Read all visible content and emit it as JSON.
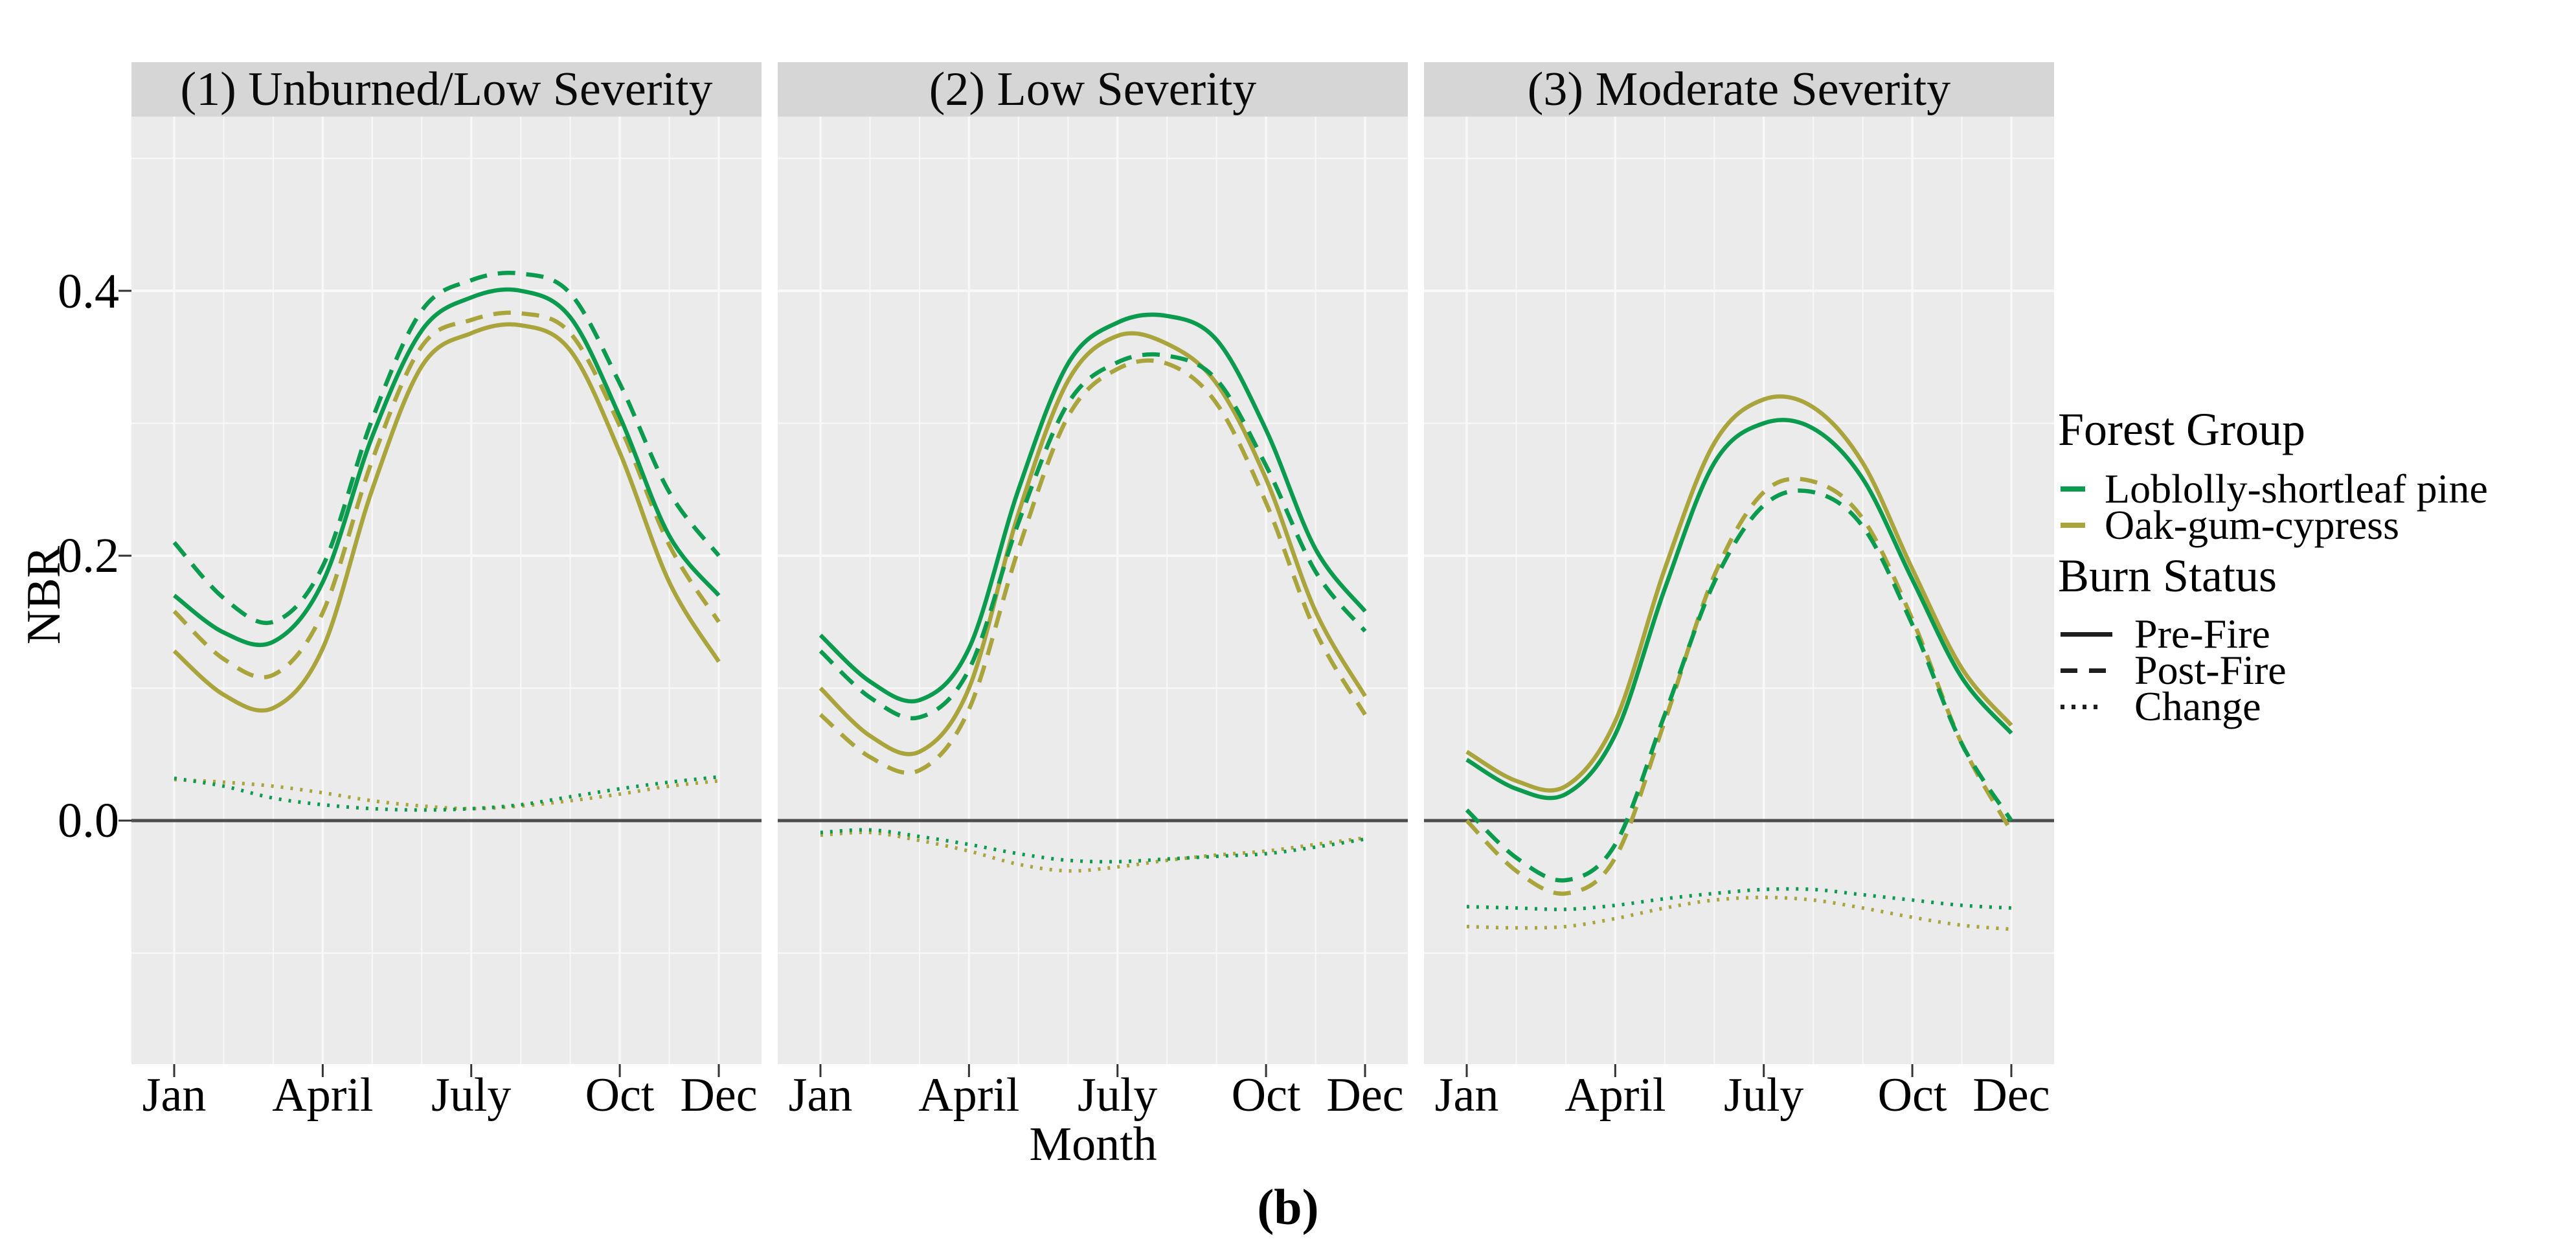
{
  "figure": {
    "caption": "(b)",
    "y_axis": {
      "label": "NBR",
      "tick_labels": [
        "0.4",
        "0.2",
        "0.0"
      ],
      "tick_values": [
        0.4,
        0.2,
        0.0
      ]
    },
    "x_axis": {
      "label": "Month",
      "tick_labels": [
        "Jan",
        "April",
        "July",
        "Oct",
        "Dec"
      ],
      "tick_months": [
        1,
        4,
        7,
        10,
        12
      ]
    },
    "legend": {
      "group_title": "Forest Group",
      "groups": [
        {
          "label": "Loblolly-shortleaf pine",
          "color": "#0b9b4f"
        },
        {
          "label": "Oak-gum-cypress",
          "color": "#a9a43b"
        }
      ],
      "status_title": "Burn Status",
      "statuses": [
        {
          "label": "Pre-Fire",
          "linetype": "solid"
        },
        {
          "label": "Post-Fire",
          "linetype": "dashed"
        },
        {
          "label": "Change",
          "linetype": "dotted"
        }
      ]
    },
    "colors": {
      "pine_green": "#0b9b4f",
      "oak_olive": "#a9a43b",
      "panel_bg": "#ebebeb",
      "strip_bg": "#d6d6d6",
      "gridline": "#f8f8f8",
      "zero_line": "#4d4d4d",
      "tick": "#333333",
      "text": "#000000"
    }
  },
  "chart_data": {
    "type": "line",
    "x_months": [
      1,
      2,
      3,
      4,
      5,
      6,
      7,
      8,
      9,
      10,
      11,
      12
    ],
    "x_tick_months": [
      1,
      4,
      7,
      10,
      12
    ],
    "x_tick_labels": [
      "Jan",
      "April",
      "July",
      "Oct",
      "Dec"
    ],
    "xlabel": "Month",
    "ylabel": "NBR",
    "ylim": [
      -0.184,
      0.53
    ],
    "y_major": [
      0.0,
      0.2,
      0.4
    ],
    "y_minor": [
      -0.1,
      0.1,
      0.3,
      0.5
    ],
    "zero_line": 0.0,
    "legend_position": "right",
    "grid": true,
    "panels": [
      {
        "title": "(1) Unburned/Low Severity",
        "series": [
          {
            "forest_group": "Loblolly-shortleaf pine",
            "burn_status": "Pre-Fire",
            "values": [
              0.17,
              0.142,
              0.135,
              0.18,
              0.29,
              0.37,
              0.395,
              0.4,
              0.38,
              0.305,
              0.215,
              0.17
            ]
          },
          {
            "forest_group": "Loblolly-shortleaf pine",
            "burn_status": "Post-Fire",
            "values": [
              0.21,
              0.168,
              0.15,
              0.192,
              0.303,
              0.385,
              0.408,
              0.413,
              0.398,
              0.33,
              0.248,
              0.2
            ]
          },
          {
            "forest_group": "Loblolly-shortleaf pine",
            "burn_status": "Change",
            "values": [
              0.032,
              0.026,
              0.017,
              0.012,
              0.009,
              0.008,
              0.009,
              0.012,
              0.018,
              0.024,
              0.029,
              0.033
            ]
          },
          {
            "forest_group": "Oak-gum-cypress",
            "burn_status": "Pre-Fire",
            "values": [
              0.128,
              0.095,
              0.085,
              0.13,
              0.25,
              0.343,
              0.368,
              0.374,
              0.355,
              0.278,
              0.18,
              0.12
            ]
          },
          {
            "forest_group": "Oak-gum-cypress",
            "burn_status": "Post-Fire",
            "values": [
              0.158,
              0.122,
              0.11,
              0.157,
              0.272,
              0.358,
              0.378,
              0.383,
              0.368,
              0.298,
              0.208,
              0.15
            ]
          },
          {
            "forest_group": "Oak-gum-cypress",
            "burn_status": "Change",
            "values": [
              0.031,
              0.029,
              0.026,
              0.021,
              0.015,
              0.011,
              0.009,
              0.011,
              0.015,
              0.02,
              0.026,
              0.03
            ]
          }
        ]
      },
      {
        "title": "(2) Low Severity",
        "series": [
          {
            "forest_group": "Loblolly-shortleaf pine",
            "burn_status": "Pre-Fire",
            "values": [
              0.14,
              0.105,
              0.091,
              0.13,
              0.25,
              0.345,
              0.376,
              0.381,
              0.363,
              0.295,
              0.205,
              0.158
            ]
          },
          {
            "forest_group": "Loblolly-shortleaf pine",
            "burn_status": "Post-Fire",
            "values": [
              0.128,
              0.093,
              0.078,
              0.114,
              0.225,
              0.315,
              0.346,
              0.351,
              0.333,
              0.268,
              0.188,
              0.143
            ]
          },
          {
            "forest_group": "Loblolly-shortleaf pine",
            "burn_status": "Change",
            "values": [
              -0.009,
              -0.007,
              -0.012,
              -0.018,
              -0.025,
              -0.03,
              -0.031,
              -0.029,
              -0.027,
              -0.025,
              -0.02,
              -0.014
            ]
          },
          {
            "forest_group": "Oak-gum-cypress",
            "burn_status": "Pre-Fire",
            "values": [
              0.1,
              0.064,
              0.052,
              0.1,
              0.232,
              0.332,
              0.366,
              0.36,
              0.33,
              0.258,
              0.158,
              0.094
            ]
          },
          {
            "forest_group": "Oak-gum-cypress",
            "burn_status": "Post-Fire",
            "values": [
              0.08,
              0.048,
              0.038,
              0.084,
              0.205,
              0.305,
              0.341,
              0.345,
              0.315,
              0.24,
              0.143,
              0.08
            ]
          },
          {
            "forest_group": "Oak-gum-cypress",
            "burn_status": "Change",
            "values": [
              -0.011,
              -0.009,
              -0.015,
              -0.023,
              -0.033,
              -0.038,
              -0.035,
              -0.03,
              -0.026,
              -0.023,
              -0.018,
              -0.013
            ]
          }
        ]
      },
      {
        "title": "(3) Moderate Severity",
        "series": [
          {
            "forest_group": "Loblolly-shortleaf pine",
            "burn_status": "Pre-Fire",
            "values": [
              0.046,
              0.024,
              0.02,
              0.065,
              0.175,
              0.27,
              0.3,
              0.296,
              0.258,
              0.182,
              0.108,
              0.066
            ]
          },
          {
            "forest_group": "Loblolly-shortleaf pine",
            "burn_status": "Post-Fire",
            "values": [
              0.008,
              -0.028,
              -0.045,
              -0.018,
              0.08,
              0.18,
              0.238,
              0.248,
              0.222,
              0.148,
              0.058,
              0.0
            ]
          },
          {
            "forest_group": "Loblolly-shortleaf pine",
            "burn_status": "Change",
            "values": [
              -0.065,
              -0.066,
              -0.067,
              -0.064,
              -0.059,
              -0.055,
              -0.052,
              -0.052,
              -0.056,
              -0.06,
              -0.064,
              -0.066
            ]
          },
          {
            "forest_group": "Oak-gum-cypress",
            "burn_status": "Pre-Fire",
            "values": [
              0.052,
              0.03,
              0.026,
              0.075,
              0.19,
              0.285,
              0.318,
              0.312,
              0.27,
              0.19,
              0.115,
              0.072
            ]
          },
          {
            "forest_group": "Oak-gum-cypress",
            "burn_status": "Post-Fire",
            "values": [
              0.0,
              -0.038,
              -0.055,
              -0.028,
              0.075,
              0.185,
              0.248,
              0.256,
              0.228,
              0.152,
              0.058,
              -0.008
            ]
          },
          {
            "forest_group": "Oak-gum-cypress",
            "burn_status": "Change",
            "values": [
              -0.08,
              -0.081,
              -0.08,
              -0.074,
              -0.066,
              -0.06,
              -0.058,
              -0.06,
              -0.066,
              -0.073,
              -0.079,
              -0.082
            ]
          }
        ]
      }
    ]
  }
}
